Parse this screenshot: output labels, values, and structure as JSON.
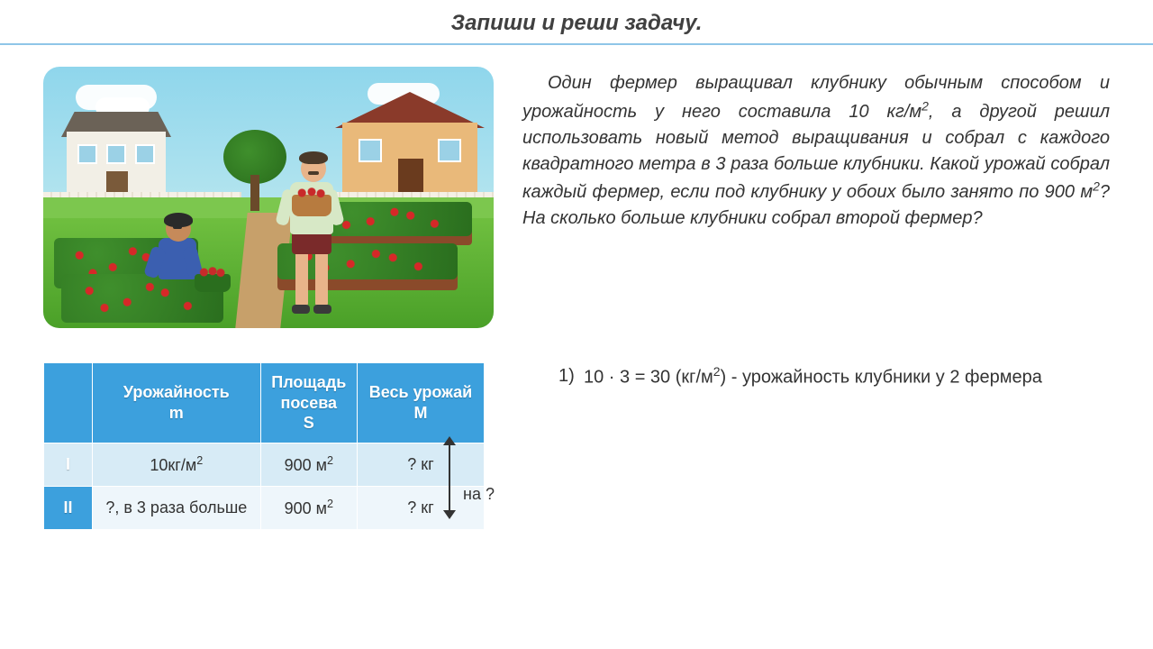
{
  "title": "Запиши и реши задачу.",
  "problem_html": "Один фермер выращивал клубнику обычным способом и урожайность у него составила 10 кг/м<sup>2</sup>, а другой решил использовать новый метод выращивания и собрал с каждого квадратного метра в 3 раза больше клубники. Какой урожай собрал каждый фермер, если под клубнику у обоих было занято по 900 м<sup>2</sup>? На сколько больше клубники собрал второй фермер?",
  "table": {
    "header_bg": "#3ca0dd",
    "header_fg": "#ffffff",
    "row_bg_odd": "#eef6fb",
    "row_bg_even": "#d7ebf6",
    "columns": [
      "",
      "Урожайность\nm",
      "Площадь\nпосева\nS",
      "Весь урожай\nM"
    ],
    "rows": [
      {
        "label": "I",
        "yield_html": "10кг/м<sup>2</sup>",
        "area_html": "900 м<sup>2</sup>",
        "total": "? кг"
      },
      {
        "label": "II",
        "yield_html": "?, в 3 раза больше",
        "area_html": "900 м<sup>2</sup>",
        "total": "? кг"
      }
    ],
    "compare_annotation": "на ?"
  },
  "solution_steps": [
    {
      "n": "1)",
      "text_html": "10 · 3 = 30 (кг/м<sup>2</sup>) - урожайность клубники у 2 фермера"
    }
  ],
  "illustration": {
    "sky_top": "#8fd6ec",
    "sky_bottom": "#d8f1e8",
    "grass": "#4aa028",
    "house_left": {
      "wall": "#f2efe6",
      "roof": "#6b6257"
    },
    "house_right": {
      "wall": "#e9b97a",
      "roof": "#8a3a2a"
    },
    "farmer_left": {
      "shirt": "#3b5fb0",
      "skin": "#c68a5a",
      "hair": "#2a2a2a"
    },
    "farmer_right": {
      "shirt": "#d7e8c6",
      "shorts": "#7a2a2a",
      "skin": "#e8b48a",
      "hair": "#4a3a2a"
    }
  }
}
